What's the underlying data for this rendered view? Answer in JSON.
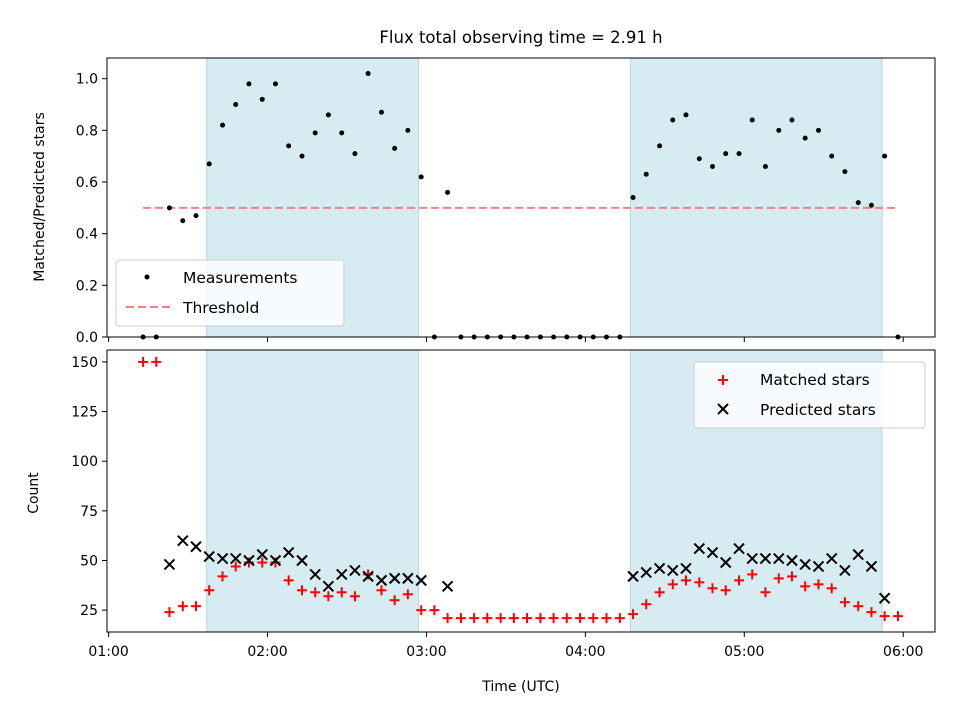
{
  "chart_data": [
    {
      "type": "scatter",
      "title": "Flux total observing time = 2.91 h",
      "xlabel": "",
      "ylabel": "Matched/Predicted stars",
      "xlim": [
        0.99,
        6.2
      ],
      "ylim": [
        0,
        1.08
      ],
      "yticks": [
        "0.0",
        "0.2",
        "0.4",
        "0.6",
        "0.8",
        "1.0"
      ],
      "shaded_intervals": [
        [
          1.617,
          2.95
        ],
        [
          4.283,
          5.867
        ]
      ],
      "shade_color": "#add8e6",
      "threshold": {
        "name": "Threshold",
        "y": 0.5,
        "x_range": [
          1.217,
          5.95
        ],
        "color": "#f08080"
      },
      "legend": {
        "position": "lower-left",
        "entries": [
          "Measurements",
          "Threshold"
        ]
      },
      "series": [
        {
          "name": "Measurements",
          "color": "#000000",
          "marker": "dot",
          "points": [
            [
              1.217,
              0
            ],
            [
              1.3,
              0
            ],
            [
              1.383,
              0.5
            ],
            [
              1.467,
              0.45
            ],
            [
              1.55,
              0.47
            ],
            [
              1.633,
              0.67
            ],
            [
              1.717,
              0.82
            ],
            [
              1.8,
              0.9
            ],
            [
              1.883,
              0.98
            ],
            [
              1.967,
              0.92
            ],
            [
              2.05,
              0.98
            ],
            [
              2.133,
              0.74
            ],
            [
              2.217,
              0.7
            ],
            [
              2.3,
              0.79
            ],
            [
              2.383,
              0.86
            ],
            [
              2.467,
              0.79
            ],
            [
              2.55,
              0.71
            ],
            [
              2.633,
              1.02
            ],
            [
              2.717,
              0.87
            ],
            [
              2.8,
              0.73
            ],
            [
              2.883,
              0.8
            ],
            [
              2.967,
              0.62
            ],
            [
              3.05,
              0
            ],
            [
              3.133,
              0.56
            ],
            [
              3.217,
              0
            ],
            [
              3.3,
              0
            ],
            [
              3.383,
              0
            ],
            [
              3.467,
              0
            ],
            [
              3.55,
              0
            ],
            [
              3.633,
              0
            ],
            [
              3.717,
              0
            ],
            [
              3.8,
              0
            ],
            [
              3.883,
              0
            ],
            [
              3.967,
              0
            ],
            [
              4.05,
              0
            ],
            [
              4.133,
              0
            ],
            [
              4.217,
              0
            ],
            [
              4.3,
              0.54
            ],
            [
              4.383,
              0.63
            ],
            [
              4.467,
              0.74
            ],
            [
              4.55,
              0.84
            ],
            [
              4.633,
              0.86
            ],
            [
              4.717,
              0.69
            ],
            [
              4.8,
              0.66
            ],
            [
              4.883,
              0.71
            ],
            [
              4.967,
              0.71
            ],
            [
              5.05,
              0.84
            ],
            [
              5.133,
              0.66
            ],
            [
              5.217,
              0.8
            ],
            [
              5.3,
              0.84
            ],
            [
              5.383,
              0.77
            ],
            [
              5.467,
              0.8
            ],
            [
              5.55,
              0.7
            ],
            [
              5.633,
              0.64
            ],
            [
              5.717,
              0.52
            ],
            [
              5.8,
              0.51
            ],
            [
              5.883,
              0.7
            ],
            [
              5.967,
              0
            ]
          ]
        }
      ]
    },
    {
      "type": "scatter",
      "title": "",
      "xlabel": "Time (UTC)",
      "ylabel": "Count",
      "xlim": [
        0.99,
        6.2
      ],
      "ylim": [
        14,
        156
      ],
      "xticks": [
        {
          "value": 1,
          "label": "01:00"
        },
        {
          "value": 2,
          "label": "02:00"
        },
        {
          "value": 3,
          "label": "03:00"
        },
        {
          "value": 4,
          "label": "04:00"
        },
        {
          "value": 5,
          "label": "05:00"
        },
        {
          "value": 6,
          "label": "06:00"
        }
      ],
      "yticks": [
        "25",
        "50",
        "75",
        "100",
        "125",
        "150"
      ],
      "shaded_intervals": [
        [
          1.617,
          2.95
        ],
        [
          4.283,
          5.867
        ]
      ],
      "shade_color": "#add8e6",
      "legend": {
        "position": "top-right",
        "entries": [
          "Matched stars",
          "Predicted stars"
        ]
      },
      "series": [
        {
          "name": "Matched stars",
          "color": "#ff0000",
          "marker": "plus",
          "points": [
            [
              1.217,
              150
            ],
            [
              1.3,
              150
            ],
            [
              1.383,
              24
            ],
            [
              1.467,
              27
            ],
            [
              1.55,
              27
            ],
            [
              1.633,
              35
            ],
            [
              1.717,
              42
            ],
            [
              1.8,
              47
            ],
            [
              1.883,
              49
            ],
            [
              1.967,
              49
            ],
            [
              2.05,
              49
            ],
            [
              2.133,
              40
            ],
            [
              2.217,
              35
            ],
            [
              2.3,
              34
            ],
            [
              2.383,
              32
            ],
            [
              2.467,
              34
            ],
            [
              2.55,
              32
            ],
            [
              2.633,
              43
            ],
            [
              2.717,
              35
            ],
            [
              2.8,
              30
            ],
            [
              2.883,
              33
            ],
            [
              2.967,
              25
            ],
            [
              3.05,
              25
            ],
            [
              3.133,
              21
            ],
            [
              3.217,
              21
            ],
            [
              3.3,
              21
            ],
            [
              3.383,
              21
            ],
            [
              3.467,
              21
            ],
            [
              3.55,
              21
            ],
            [
              3.633,
              21
            ],
            [
              3.717,
              21
            ],
            [
              3.8,
              21
            ],
            [
              3.883,
              21
            ],
            [
              3.967,
              21
            ],
            [
              4.05,
              21
            ],
            [
              4.133,
              21
            ],
            [
              4.217,
              21
            ],
            [
              4.3,
              23
            ],
            [
              4.383,
              28
            ],
            [
              4.467,
              34
            ],
            [
              4.55,
              38
            ],
            [
              4.633,
              40
            ],
            [
              4.717,
              39
            ],
            [
              4.8,
              36
            ],
            [
              4.883,
              35
            ],
            [
              4.967,
              40
            ],
            [
              5.05,
              43
            ],
            [
              5.133,
              34
            ],
            [
              5.217,
              41
            ],
            [
              5.3,
              42
            ],
            [
              5.383,
              37
            ],
            [
              5.467,
              38
            ],
            [
              5.55,
              36
            ],
            [
              5.633,
              29
            ],
            [
              5.717,
              27
            ],
            [
              5.8,
              24
            ],
            [
              5.883,
              22
            ],
            [
              5.967,
              22
            ]
          ]
        },
        {
          "name": "Predicted stars",
          "color": "#000000",
          "marker": "x",
          "points": [
            [
              1.383,
              48
            ],
            [
              1.467,
              60
            ],
            [
              1.55,
              57
            ],
            [
              1.633,
              52
            ],
            [
              1.717,
              51
            ],
            [
              1.8,
              51
            ],
            [
              1.883,
              50
            ],
            [
              1.967,
              53
            ],
            [
              2.05,
              50
            ],
            [
              2.133,
              54
            ],
            [
              2.217,
              50
            ],
            [
              2.3,
              43
            ],
            [
              2.383,
              37
            ],
            [
              2.467,
              43
            ],
            [
              2.55,
              45
            ],
            [
              2.633,
              42
            ],
            [
              2.717,
              40
            ],
            [
              2.8,
              41
            ],
            [
              2.883,
              41
            ],
            [
              2.967,
              40
            ],
            [
              3.133,
              37
            ],
            [
              4.3,
              42
            ],
            [
              4.383,
              44
            ],
            [
              4.467,
              46
            ],
            [
              4.55,
              45
            ],
            [
              4.633,
              46
            ],
            [
              4.717,
              56
            ],
            [
              4.8,
              54
            ],
            [
              4.883,
              49
            ],
            [
              4.967,
              56
            ],
            [
              5.05,
              51
            ],
            [
              5.133,
              51
            ],
            [
              5.217,
              51
            ],
            [
              5.3,
              50
            ],
            [
              5.383,
              48
            ],
            [
              5.467,
              47
            ],
            [
              5.55,
              51
            ],
            [
              5.633,
              45
            ],
            [
              5.717,
              53
            ],
            [
              5.8,
              47
            ],
            [
              5.883,
              31
            ]
          ]
        }
      ]
    }
  ]
}
